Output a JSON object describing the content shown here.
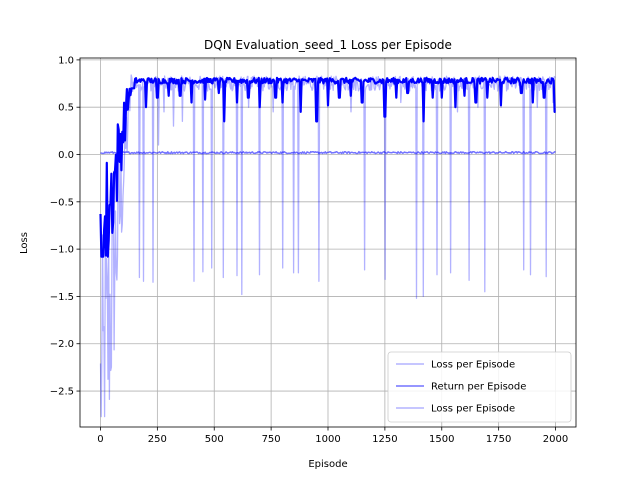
{
  "chart_data": {
    "type": "line",
    "title": "DQN Evaluation_seed_1 Loss per Episode",
    "xlabel": "Episode",
    "ylabel": "Loss",
    "xlim": [
      -90,
      2090
    ],
    "ylim": [
      -2.88,
      1.02
    ],
    "x_ticks": [
      0,
      250,
      500,
      750,
      1000,
      1250,
      1500,
      1750,
      2000
    ],
    "y_ticks": [
      1.0,
      0.5,
      0.0,
      -0.5,
      -1.0,
      -1.5,
      -2.0,
      -2.5
    ],
    "x_tick_labels": [
      "0",
      "250",
      "500",
      "750",
      "1000",
      "1250",
      "1500",
      "1750",
      "2000"
    ],
    "y_tick_labels": [
      "1.0",
      "0.5",
      "0.0",
      "−0.5",
      "−1.0",
      "−1.5",
      "−2.0",
      "−2.5"
    ],
    "grid": true,
    "legend_position": "bottom-right",
    "series": [
      {
        "name": "Loss per Episode",
        "color": "#0000ff",
        "style": "faint",
        "episodes": [
          0,
          2000
        ],
        "baseline": 0.75,
        "noise_amplitude": 0.08,
        "early_phase": {
          "x": [
            0,
            150
          ],
          "y_range": [
            -2.77,
            0.85
          ]
        },
        "spikes": [
          {
            "x": 170,
            "y": -1.3
          },
          {
            "x": 190,
            "y": -1.34
          },
          {
            "x": 230,
            "y": -1.35
          },
          {
            "x": 255,
            "y": 0.1
          },
          {
            "x": 280,
            "y": 0.45
          },
          {
            "x": 320,
            "y": 0.3
          },
          {
            "x": 360,
            "y": 0.35
          },
          {
            "x": 410,
            "y": -1.34
          },
          {
            "x": 450,
            "y": -1.24
          },
          {
            "x": 490,
            "y": -1.2
          },
          {
            "x": 540,
            "y": -1.3
          },
          {
            "x": 600,
            "y": -1.28
          },
          {
            "x": 620,
            "y": -1.48
          },
          {
            "x": 650,
            "y": 0.5
          },
          {
            "x": 700,
            "y": -1.27
          },
          {
            "x": 760,
            "y": 0.45
          },
          {
            "x": 800,
            "y": -1.2
          },
          {
            "x": 850,
            "y": -1.25
          },
          {
            "x": 870,
            "y": -1.25
          },
          {
            "x": 960,
            "y": -1.34
          },
          {
            "x": 1000,
            "y": 0.5
          },
          {
            "x": 1100,
            "y": 0.45
          },
          {
            "x": 1160,
            "y": -1.22
          },
          {
            "x": 1250,
            "y": -1.32
          },
          {
            "x": 1320,
            "y": 0.55
          },
          {
            "x": 1390,
            "y": -1.52
          },
          {
            "x": 1420,
            "y": -1.5
          },
          {
            "x": 1480,
            "y": -1.27
          },
          {
            "x": 1540,
            "y": -1.25
          },
          {
            "x": 1570,
            "y": 0.45
          },
          {
            "x": 1620,
            "y": -1.33
          },
          {
            "x": 1660,
            "y": 0.5
          },
          {
            "x": 1690,
            "y": -1.45
          },
          {
            "x": 1760,
            "y": 0.5
          },
          {
            "x": 1860,
            "y": -1.22
          },
          {
            "x": 1890,
            "y": -1.27
          },
          {
            "x": 1920,
            "y": 0.5
          },
          {
            "x": 1960,
            "y": -1.29
          },
          {
            "x": 1990,
            "y": 0.55
          }
        ]
      },
      {
        "name": "Return per Episode",
        "color": "#0000ff",
        "style": "medium",
        "episodes": [
          0,
          2000
        ],
        "baseline": 0.02,
        "noise_amplitude": 0.01
      },
      {
        "name": "Loss per Episode",
        "color": "#0000ff",
        "style": "smoothed",
        "episodes": [
          0,
          2000
        ],
        "baseline": 0.78,
        "noise_amplitude": 0.03,
        "early_phase": {
          "x": [
            0,
            150
          ],
          "y_range": [
            -1.08,
            0.7
          ]
        },
        "dips": [
          {
            "x": 200,
            "y": 0.5
          },
          {
            "x": 250,
            "y": 0.6
          },
          {
            "x": 300,
            "y": 0.62
          },
          {
            "x": 350,
            "y": 0.62
          },
          {
            "x": 400,
            "y": 0.55
          },
          {
            "x": 460,
            "y": 0.58
          },
          {
            "x": 520,
            "y": 0.65
          },
          {
            "x": 545,
            "y": 0.35
          },
          {
            "x": 600,
            "y": 0.55
          },
          {
            "x": 650,
            "y": 0.6
          },
          {
            "x": 700,
            "y": 0.5
          },
          {
            "x": 770,
            "y": 0.6
          },
          {
            "x": 800,
            "y": 0.55
          },
          {
            "x": 880,
            "y": 0.45
          },
          {
            "x": 950,
            "y": 0.35
          },
          {
            "x": 1000,
            "y": 0.52
          },
          {
            "x": 1050,
            "y": 0.6
          },
          {
            "x": 1100,
            "y": 0.62
          },
          {
            "x": 1150,
            "y": 0.55
          },
          {
            "x": 1250,
            "y": 0.4
          },
          {
            "x": 1300,
            "y": 0.6
          },
          {
            "x": 1350,
            "y": 0.65
          },
          {
            "x": 1420,
            "y": 0.35
          },
          {
            "x": 1460,
            "y": 0.6
          },
          {
            "x": 1500,
            "y": 0.6
          },
          {
            "x": 1560,
            "y": 0.5
          },
          {
            "x": 1600,
            "y": 0.62
          },
          {
            "x": 1650,
            "y": 0.55
          },
          {
            "x": 1700,
            "y": 0.6
          },
          {
            "x": 1760,
            "y": 0.52
          },
          {
            "x": 1850,
            "y": 0.65
          },
          {
            "x": 1900,
            "y": 0.55
          },
          {
            "x": 1950,
            "y": 0.6
          },
          {
            "x": 1998,
            "y": 0.45
          }
        ]
      }
    ]
  }
}
